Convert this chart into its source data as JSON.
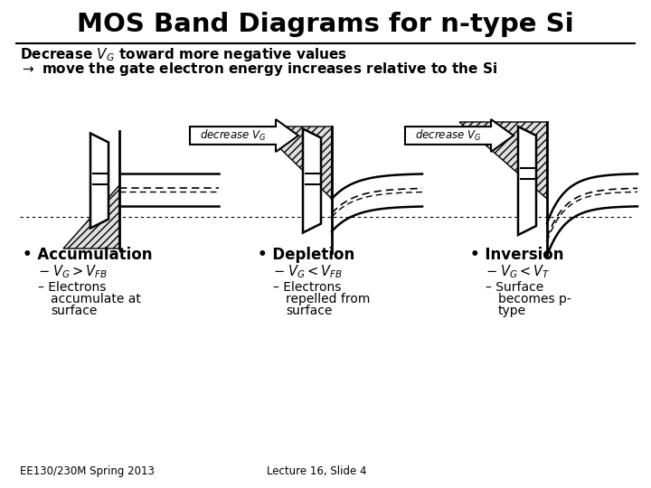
{
  "title": "MOS Band Diagrams for n-type Si",
  "subtitle1": "Decrease $V_G$ toward more negative values",
  "subtitle2": "$\\rightarrow$ move the gate electron energy increases relative to the Si",
  "arrow_label": "decrease $V_G$",
  "label1": "Accumulation",
  "label2": "Depletion",
  "label3": "Inversion",
  "eq1a": "$V_G > V_{FB}$",
  "eq2a": "$V_G < V_{FB}$",
  "eq3a": "$V_G < V_T$",
  "sub1a": "Electrons",
  "sub1b": "accumulate at",
  "sub1c": "surface",
  "sub2a": "Electrons",
  "sub2b": "repelled from",
  "sub2c": "surface",
  "sub3a": "Surface",
  "sub3b": "becomes p-",
  "sub3c": "type",
  "footer_left": "EE130/230M Spring 2013",
  "footer_right": "Lecture 16, Slide 4",
  "bg_color": "#ffffff",
  "lc": "#000000"
}
